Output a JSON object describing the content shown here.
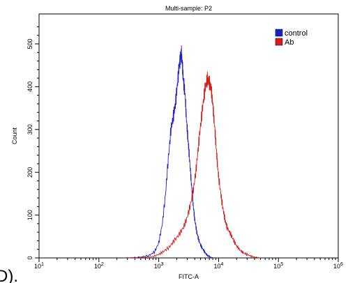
{
  "panel_label": "D).",
  "chart_data": {
    "type": "line",
    "title": "Multi-sample: P2",
    "xlabel": "FITC-A",
    "ylabel": "Count",
    "xscale": "log",
    "xlim": [
      10,
      1000000
    ],
    "ylim": [
      0,
      570
    ],
    "x_ticks": [
      {
        "value": 10,
        "base": "10",
        "exp": "1"
      },
      {
        "value": 100,
        "base": "10",
        "exp": "2"
      },
      {
        "value": 1000,
        "base": "10",
        "exp": "3"
      },
      {
        "value": 10000,
        "base": "10",
        "exp": "4"
      },
      {
        "value": 100000,
        "base": "10",
        "exp": "5"
      },
      {
        "value": 1000000,
        "base": "10",
        "exp": "6"
      }
    ],
    "y_ticks": [
      0,
      100,
      200,
      300,
      400,
      500
    ],
    "legend": {
      "position": "top-right"
    },
    "series": [
      {
        "name": "control",
        "color": "#1f1fc8",
        "x": [
          316,
          500,
          700,
          850,
          1000,
          1150,
          1300,
          1450,
          1600,
          1750,
          1900,
          2050,
          2200,
          2300,
          2400,
          2500,
          2600,
          2750,
          2900,
          3050,
          3200,
          3400,
          3600,
          3800,
          4000,
          4300,
          4600,
          5000,
          5500,
          6000,
          6500,
          7000,
          8000
        ],
        "y": [
          0,
          2,
          6,
          14,
          35,
          80,
          150,
          235,
          300,
          330,
          360,
          405,
          450,
          466,
          477,
          445,
          410,
          385,
          325,
          285,
          250,
          200,
          155,
          118,
          90,
          62,
          45,
          30,
          20,
          12,
          6,
          3,
          0
        ]
      },
      {
        "name": "Ab",
        "color": "#d21e1e",
        "x": [
          300,
          500,
          800,
          1000,
          1200,
          1500,
          1800,
          2200,
          2600,
          3000,
          3400,
          3800,
          4200,
          4600,
          5000,
          5500,
          6000,
          6500,
          7000,
          7500,
          8000,
          8500,
          9000,
          9500,
          10000,
          11000,
          12000,
          13000,
          14000,
          16000,
          18000,
          20000,
          23000,
          26000,
          30000,
          35000,
          40000,
          50000
        ],
        "y": [
          0,
          1,
          3,
          8,
          15,
          25,
          40,
          55,
          72,
          95,
          125,
          160,
          205,
          260,
          310,
          360,
          400,
          418,
          410,
          395,
          360,
          315,
          270,
          225,
          190,
          145,
          110,
          85,
          70,
          55,
          40,
          28,
          18,
          12,
          8,
          4,
          2,
          0
        ]
      }
    ]
  }
}
